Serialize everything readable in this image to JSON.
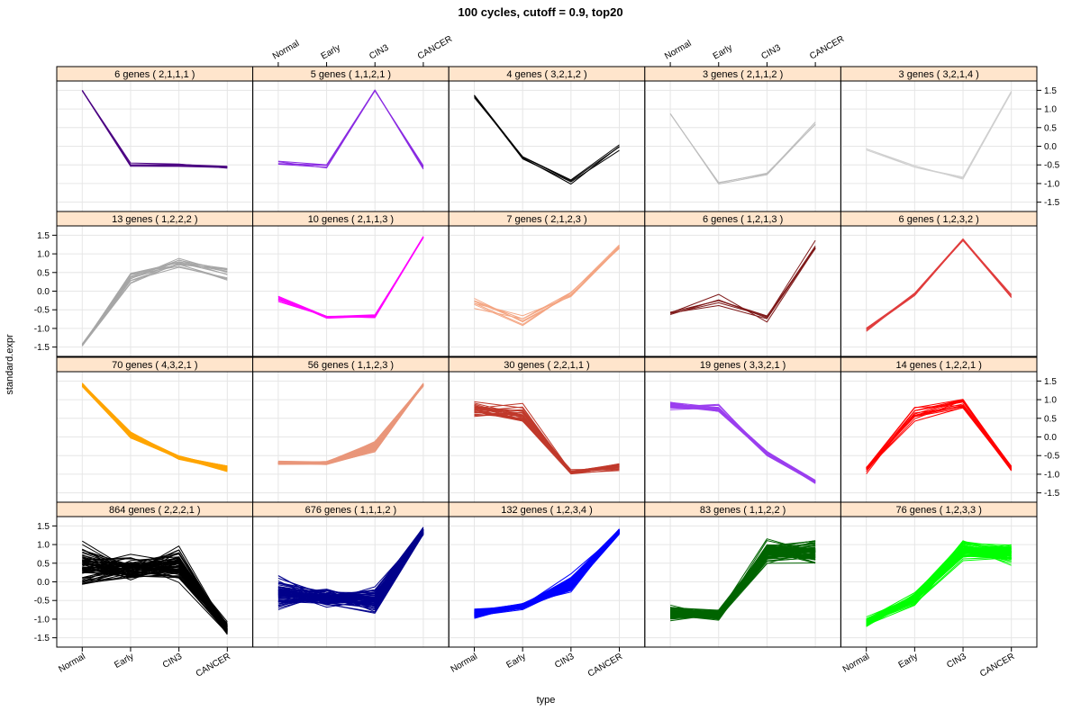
{
  "chart_data": {
    "type": "line",
    "title": "100 cycles, cutoff = 0.9, top20",
    "xlabel": "type",
    "ylabel": "standard.expr",
    "x_categories": [
      "Normal",
      "Early",
      "CIN3",
      "CANCER"
    ],
    "y_ticks": [
      "-1.5",
      "-1.0",
      "-0.5",
      "0.0",
      "0.5",
      "1.0",
      "1.5"
    ],
    "y_tick_values": [
      -1.5,
      -1.0,
      -0.5,
      0.0,
      0.5,
      1.0,
      1.5
    ],
    "ylim": [
      -1.75,
      1.75
    ],
    "grid": true,
    "panels": [
      {
        "label": "6 genes ( 2,1,1,1 )",
        "n_genes": 6,
        "color": "#4b0082",
        "center": [
          1.5,
          -0.5,
          -0.5,
          -0.55
        ],
        "spread": [
          0.02,
          0.1,
          0.08,
          0.08
        ]
      },
      {
        "label": "5 genes ( 1,1,2,1 )",
        "n_genes": 5,
        "color": "#8a2be2",
        "center": [
          -0.4,
          -0.5,
          1.5,
          -0.55
        ],
        "spread": [
          0.25,
          0.15,
          0.02,
          0.15
        ]
      },
      {
        "label": "4 genes ( 3,2,1,2 )",
        "n_genes": 4,
        "color": "#000000",
        "center": [
          1.35,
          -0.3,
          -0.95,
          0.0
        ],
        "spread": [
          0.1,
          0.08,
          0.15,
          0.15
        ]
      },
      {
        "label": "3 genes ( 2,1,1,2 )",
        "n_genes": 3,
        "color": "#bdbdbd",
        "center": [
          0.9,
          -1.0,
          -0.75,
          0.65
        ],
        "spread": [
          0.15,
          0.05,
          0.05,
          0.15
        ]
      },
      {
        "label": "3 genes ( 3,2,1,4 )",
        "n_genes": 3,
        "color": "#cfcfcf",
        "center": [
          -0.1,
          -0.55,
          -0.8,
          1.45
        ],
        "spread": [
          0.2,
          0.05,
          0.15,
          0.08
        ]
      },
      {
        "label": "13 genes ( 1,2,2,2 )",
        "n_genes": 13,
        "color": "#a6a6a6",
        "center": [
          -1.45,
          0.35,
          0.75,
          0.45
        ],
        "spread": [
          0.04,
          0.22,
          0.18,
          0.3
        ]
      },
      {
        "label": "10 genes ( 2,1,1,3 )",
        "n_genes": 10,
        "color": "#ff00ff",
        "center": [
          -0.2,
          -0.68,
          -0.68,
          1.45
        ],
        "spread": [
          0.15,
          0.06,
          0.06,
          0.03
        ]
      },
      {
        "label": "7 genes ( 2,1,2,3 )",
        "n_genes": 7,
        "color": "#f4a582",
        "center": [
          -0.35,
          -0.8,
          -0.1,
          1.2
        ],
        "spread": [
          0.25,
          0.25,
          0.25,
          0.25
        ]
      },
      {
        "label": "6 genes ( 1,2,1,3 )",
        "n_genes": 6,
        "color": "#7f1a1a",
        "center": [
          -0.6,
          -0.2,
          -0.7,
          1.2
        ],
        "spread": [
          0.08,
          0.35,
          0.18,
          0.25
        ]
      },
      {
        "label": "6 genes ( 1,2,3,2 )",
        "n_genes": 6,
        "color": "#e03c3c",
        "center": [
          -1.0,
          -0.1,
          1.38,
          -0.15
        ],
        "spread": [
          0.12,
          0.1,
          0.06,
          0.08
        ]
      },
      {
        "label": "70 genes ( 4,3,2,1 )",
        "n_genes": 70,
        "color": "#ffa500",
        "center": [
          1.4,
          0.05,
          -0.55,
          -0.85
        ],
        "spread": [
          0.06,
          0.12,
          0.07,
          0.1
        ]
      },
      {
        "label": "56 genes ( 1,1,2,3 )",
        "n_genes": 56,
        "color": "#e9967a",
        "center": [
          -0.7,
          -0.7,
          -0.25,
          1.4
        ],
        "spread": [
          0.07,
          0.05,
          0.2,
          0.05
        ]
      },
      {
        "label": "30 genes ( 2,2,1,1 )",
        "n_genes": 30,
        "color": "#c0392b",
        "center": [
          0.75,
          0.6,
          -0.95,
          -0.8
        ],
        "spread": [
          0.25,
          0.35,
          0.1,
          0.12
        ]
      },
      {
        "label": "19 genes ( 3,3,2,1 )",
        "n_genes": 19,
        "color": "#9b3fef",
        "center": [
          0.85,
          0.75,
          -0.45,
          -1.2
        ],
        "spread": [
          0.15,
          0.18,
          0.12,
          0.08
        ]
      },
      {
        "label": "14 genes ( 1,2,2,1 )",
        "n_genes": 14,
        "color": "#ff0000",
        "center": [
          -0.85,
          0.65,
          0.9,
          -0.85
        ],
        "spread": [
          0.15,
          0.3,
          0.25,
          0.15
        ]
      },
      {
        "label": "864 genes ( 2,2,2,1 )",
        "n_genes": 864,
        "color": "#000000",
        "center": [
          0.45,
          0.35,
          0.45,
          -1.25
        ],
        "spread": [
          0.85,
          0.45,
          0.6,
          0.22
        ]
      },
      {
        "label": "676 genes ( 1,1,1,2 )",
        "n_genes": 676,
        "color": "#00008b",
        "center": [
          -0.3,
          -0.45,
          -0.5,
          1.35
        ],
        "spread": [
          0.55,
          0.35,
          0.45,
          0.15
        ]
      },
      {
        "label": "132 genes ( 1,2,3,4 )",
        "n_genes": 132,
        "color": "#0000ff",
        "center": [
          -0.85,
          -0.65,
          -0.05,
          1.35
        ],
        "spread": [
          0.2,
          0.12,
          0.35,
          0.12
        ]
      },
      {
        "label": "83 genes ( 1,1,2,2 )",
        "n_genes": 83,
        "color": "#006400",
        "center": [
          -0.85,
          -0.9,
          0.8,
          0.8
        ],
        "spread": [
          0.25,
          0.18,
          0.45,
          0.45
        ]
      },
      {
        "label": "76 genes ( 1,2,3,3 )",
        "n_genes": 76,
        "color": "#00ff00",
        "center": [
          -1.1,
          -0.45,
          0.85,
          0.75
        ],
        "spread": [
          0.18,
          0.22,
          0.35,
          0.35
        ]
      }
    ]
  }
}
